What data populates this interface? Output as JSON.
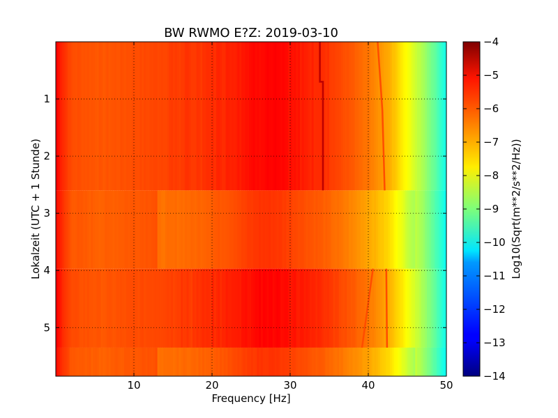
{
  "chart_data": {
    "type": "heatmap",
    "title": "BW RWMO E?Z: 2019-03-10",
    "xlabel": "Frequency [Hz]",
    "ylabel": "Lokalzeit (UTC + 1 Stunde)",
    "xlim": [
      0,
      50
    ],
    "ylim": [
      5.85,
      0
    ],
    "x_ticks": [
      10,
      20,
      30,
      40,
      50
    ],
    "y_ticks": [
      1,
      2,
      3,
      4,
      5
    ],
    "grid": true,
    "colormap": "jet",
    "colorbar": {
      "label": "Log10(Sqrt(m**2/s**2/Hz))",
      "range": [
        -14,
        -4
      ],
      "ticks": [
        -4,
        -5,
        -6,
        -7,
        -8,
        -9,
        -10,
        -11,
        -12,
        -13,
        -14
      ]
    },
    "spectrum_profile": [
      {
        "f": 0.0,
        "v": -5.2
      },
      {
        "f": 0.8,
        "v": -5.6
      },
      {
        "f": 2.0,
        "v": -6.0
      },
      {
        "f": 6.0,
        "v": -6.1
      },
      {
        "f": 10.0,
        "v": -6.0
      },
      {
        "f": 14.0,
        "v": -5.9
      },
      {
        "f": 18.0,
        "v": -5.8
      },
      {
        "f": 22.0,
        "v": -5.6
      },
      {
        "f": 26.0,
        "v": -5.3
      },
      {
        "f": 28.0,
        "v": -5.3
      },
      {
        "f": 31.0,
        "v": -5.5
      },
      {
        "f": 34.0,
        "v": -5.7
      },
      {
        "f": 37.0,
        "v": -6.0
      },
      {
        "f": 40.0,
        "v": -6.4
      },
      {
        "f": 42.5,
        "v": -6.9
      },
      {
        "f": 44.0,
        "v": -7.4
      },
      {
        "f": 45.5,
        "v": -8.0
      },
      {
        "f": 47.0,
        "v": -8.6
      },
      {
        "f": 48.5,
        "v": -9.3
      },
      {
        "f": 50.0,
        "v": -10.1
      }
    ],
    "time_segments": [
      {
        "start": 0.0,
        "end": 2.6,
        "level": "high"
      },
      {
        "start": 2.6,
        "end": 3.97,
        "level": "low"
      },
      {
        "start": 3.97,
        "end": 5.35,
        "level": "high"
      },
      {
        "start": 5.35,
        "end": 5.85,
        "level": "low"
      }
    ],
    "tonal_lines": [
      {
        "points": [
          [
            33.8,
            0.0
          ],
          [
            33.8,
            0.7
          ],
          [
            34.2,
            0.7
          ],
          [
            34.2,
            2.6
          ]
        ],
        "value": -4.6
      },
      {
        "points": [
          [
            41.2,
            0.0
          ],
          [
            41.8,
            1.2
          ],
          [
            42.1,
            2.6
          ]
        ],
        "value": -6.0
      },
      {
        "points": [
          [
            40.6,
            3.97
          ],
          [
            39.2,
            5.35
          ]
        ],
        "value": -6.0
      },
      {
        "points": [
          [
            42.3,
            3.97
          ],
          [
            42.4,
            5.35
          ]
        ],
        "value": -6.0
      }
    ]
  }
}
